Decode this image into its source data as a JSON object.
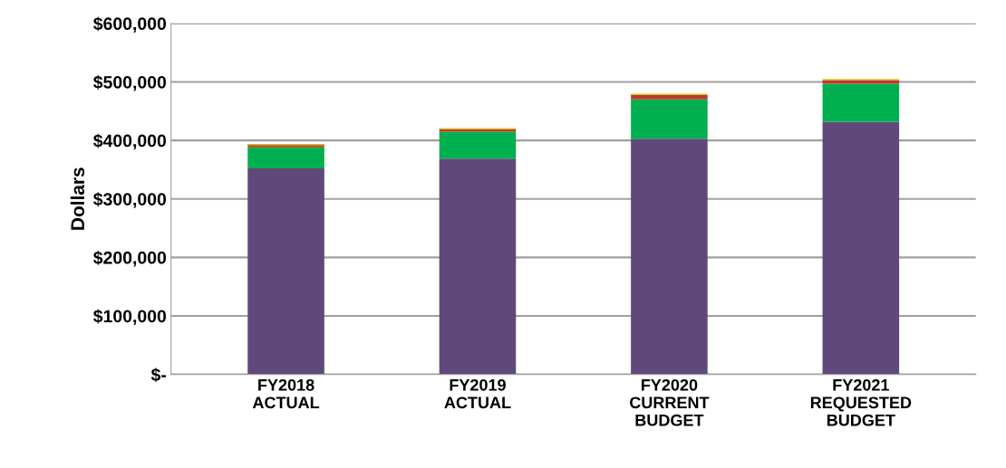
{
  "chart_data": {
    "type": "bar",
    "stacked": true,
    "ylabel": "Dollars",
    "categories": [
      "FY2018\nACTUAL",
      "FY2019\nACTUAL",
      "FY2020\nCURRENT\nBUDGET",
      "FY2021\nREQUESTED\nBUDGET"
    ],
    "series": [
      {
        "color": "#5f497a",
        "values": [
          352000,
          369000,
          403000,
          432000
        ]
      },
      {
        "color": "#00b050",
        "values": [
          36000,
          46000,
          67000,
          65000
        ]
      },
      {
        "color": "#c0392b",
        "values": [
          4000,
          4000,
          8000,
          6000
        ]
      },
      {
        "color": "#c8c800",
        "values": [
          2000,
          2000,
          2000,
          2000
        ]
      }
    ],
    "ylim": [
      0,
      600000
    ],
    "yticks": [
      {
        "value": 0,
        "label": "$-"
      },
      {
        "value": 100000,
        "label": "$100,000"
      },
      {
        "value": 200000,
        "label": "$200,000"
      },
      {
        "value": 300000,
        "label": "$300,000"
      },
      {
        "value": 400000,
        "label": "$400,000"
      },
      {
        "value": 500000,
        "label": "$500,000"
      },
      {
        "value": 600000,
        "label": "$600,000"
      }
    ],
    "grid": "y"
  }
}
